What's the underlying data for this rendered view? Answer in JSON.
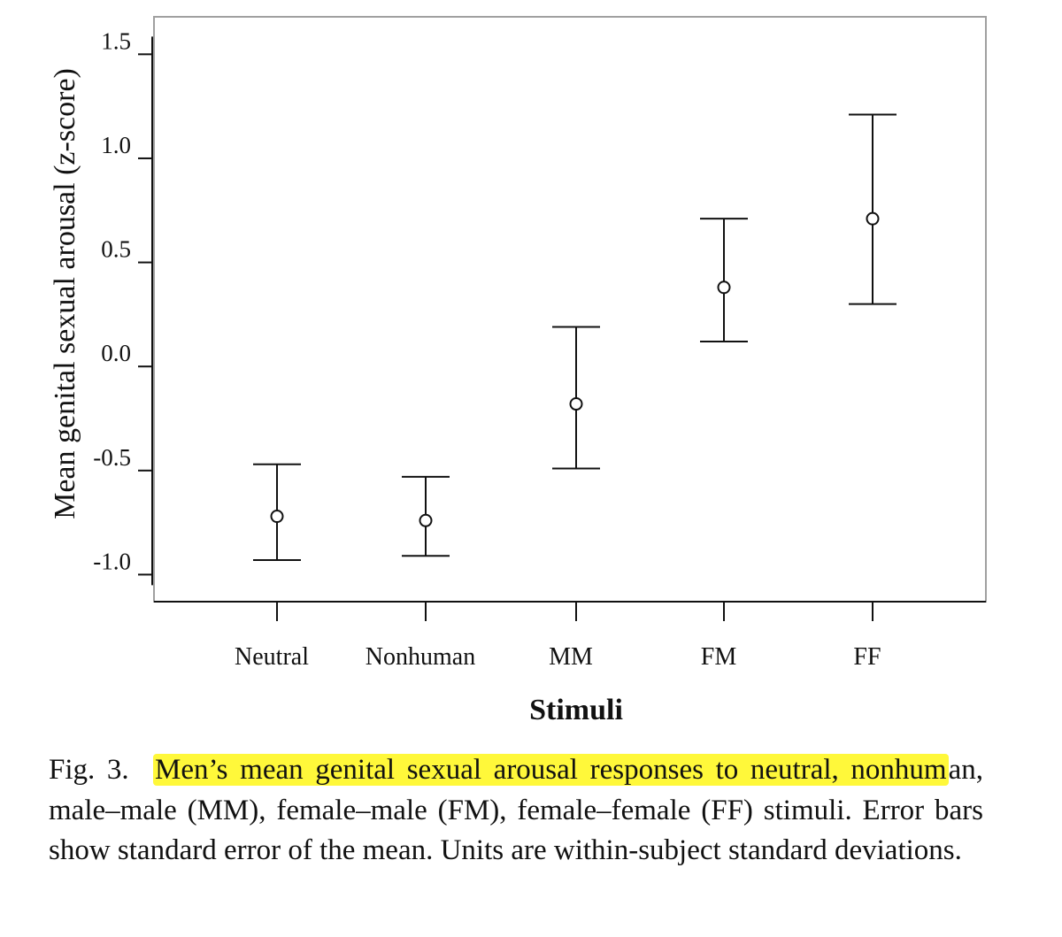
{
  "chart_data": {
    "type": "scatter",
    "style": "means with error bars",
    "categories": [
      "Neutral",
      "Nonhuman",
      "MM",
      "FM",
      "FF"
    ],
    "series": [
      {
        "values": [
          -0.72,
          -0.74,
          -0.18,
          0.38,
          0.71
        ],
        "lower": [
          -0.93,
          -0.91,
          -0.49,
          0.12,
          0.3
        ],
        "upper": [
          -0.47,
          -0.53,
          0.19,
          0.71,
          1.21
        ]
      }
    ],
    "xlabel": "Stimuli",
    "ylabel": "Mean genital sexual arousal (z-score)",
    "ylim": [
      -1.13,
      1.68
    ],
    "yticks": [
      -1.0,
      -0.5,
      0.0,
      0.5,
      1.0,
      1.5
    ],
    "ytick_labels": [
      "-1.0",
      "-0.5",
      "0.0",
      "0.5",
      "1.0",
      "1.5"
    ],
    "grid": false,
    "frame_color": "#a0a0a0",
    "highlight_color": "#fff83a"
  },
  "caption": {
    "label": "Fig. 3.",
    "highlighted": "Men’s mean genital sexual arousal responses to neutral, nonhum",
    "rest": "an, male–male (MM), female–male (FM), female–female (FF) stimuli. Error bars show standard error of the mean. Units are within-subject standard deviations."
  }
}
